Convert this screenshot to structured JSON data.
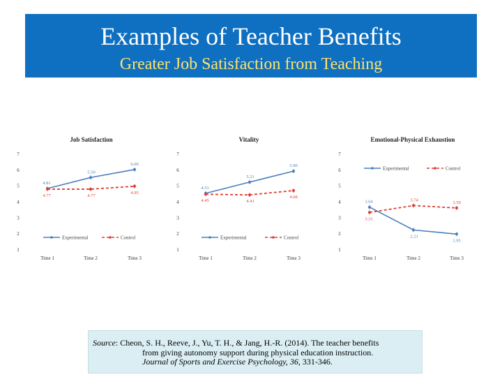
{
  "slide": {
    "title": "Examples of Teacher Benefits",
    "subtitle": "Greater Job Satisfaction from Teaching"
  },
  "source": {
    "label": "Source",
    "line1": ": Cheon, S. H., Reeve, J., Yu, T. H., & Jang, H.-R. (2014). The teacher benefits",
    "line2": "from giving autonomy support during physical education instruction.",
    "journal": "Journal of Sports and Exercise Psychology, 36,",
    "pages": " 331-346."
  },
  "colors": {
    "banner": "#0f6fc0",
    "subtitle": "#ffe36b",
    "experimental": "#4a7ebb",
    "control": "#e03c31",
    "source_box": "#dbeef4"
  },
  "chart_data": [
    {
      "type": "line",
      "title": "Job Satisfaction",
      "categories": [
        "Time 1",
        "Time 2",
        "Time 3"
      ],
      "ylim": [
        1,
        7
      ],
      "yticks": [
        "1",
        "2",
        "3",
        "4",
        "5",
        "6",
        "7"
      ],
      "legend_position": "bottom",
      "series": [
        {
          "name": "Experimental",
          "values": [
            4.81,
            5.5,
            6.0
          ],
          "labels": [
            "4.81",
            "5.50",
            "6.00"
          ],
          "style": "solid"
        },
        {
          "name": "Control",
          "values": [
            4.77,
            4.77,
            4.95
          ],
          "labels": [
            "4.77",
            "4.77",
            "4.95"
          ],
          "style": "dashed"
        }
      ]
    },
    {
      "type": "line",
      "title": "Vitality",
      "categories": [
        "Time 1",
        "Time 2",
        "Time 3"
      ],
      "ylim": [
        1,
        7
      ],
      "yticks": [
        "1",
        "2",
        "3",
        "4",
        "5",
        "6",
        "7"
      ],
      "legend_position": "bottom",
      "series": [
        {
          "name": "Experimental",
          "values": [
            4.51,
            5.21,
            5.9
          ],
          "labels": [
            "4.51",
            "5.21",
            "5.90"
          ],
          "style": "solid"
        },
        {
          "name": "Control",
          "values": [
            4.45,
            4.41,
            4.68
          ],
          "labels": [
            "4.45",
            "4.41",
            "4.68"
          ],
          "style": "dashed"
        }
      ]
    },
    {
      "type": "line",
      "title": "Emotional-Physical Exhaustion",
      "categories": [
        "Time 1",
        "Time 2",
        "Time 3"
      ],
      "ylim": [
        1,
        7
      ],
      "yticks": [
        "1",
        "2",
        "3",
        "4",
        "5",
        "6",
        "7"
      ],
      "legend_position": "top",
      "series": [
        {
          "name": "Experimental",
          "values": [
            3.64,
            2.21,
            1.95
          ],
          "labels": [
            "3.64",
            "2.21",
            "1.95"
          ],
          "style": "solid"
        },
        {
          "name": "Control",
          "values": [
            3.31,
            3.74,
            3.59
          ],
          "labels": [
            "3.31",
            "3.74",
            "3.59"
          ],
          "style": "dashed"
        }
      ]
    }
  ]
}
